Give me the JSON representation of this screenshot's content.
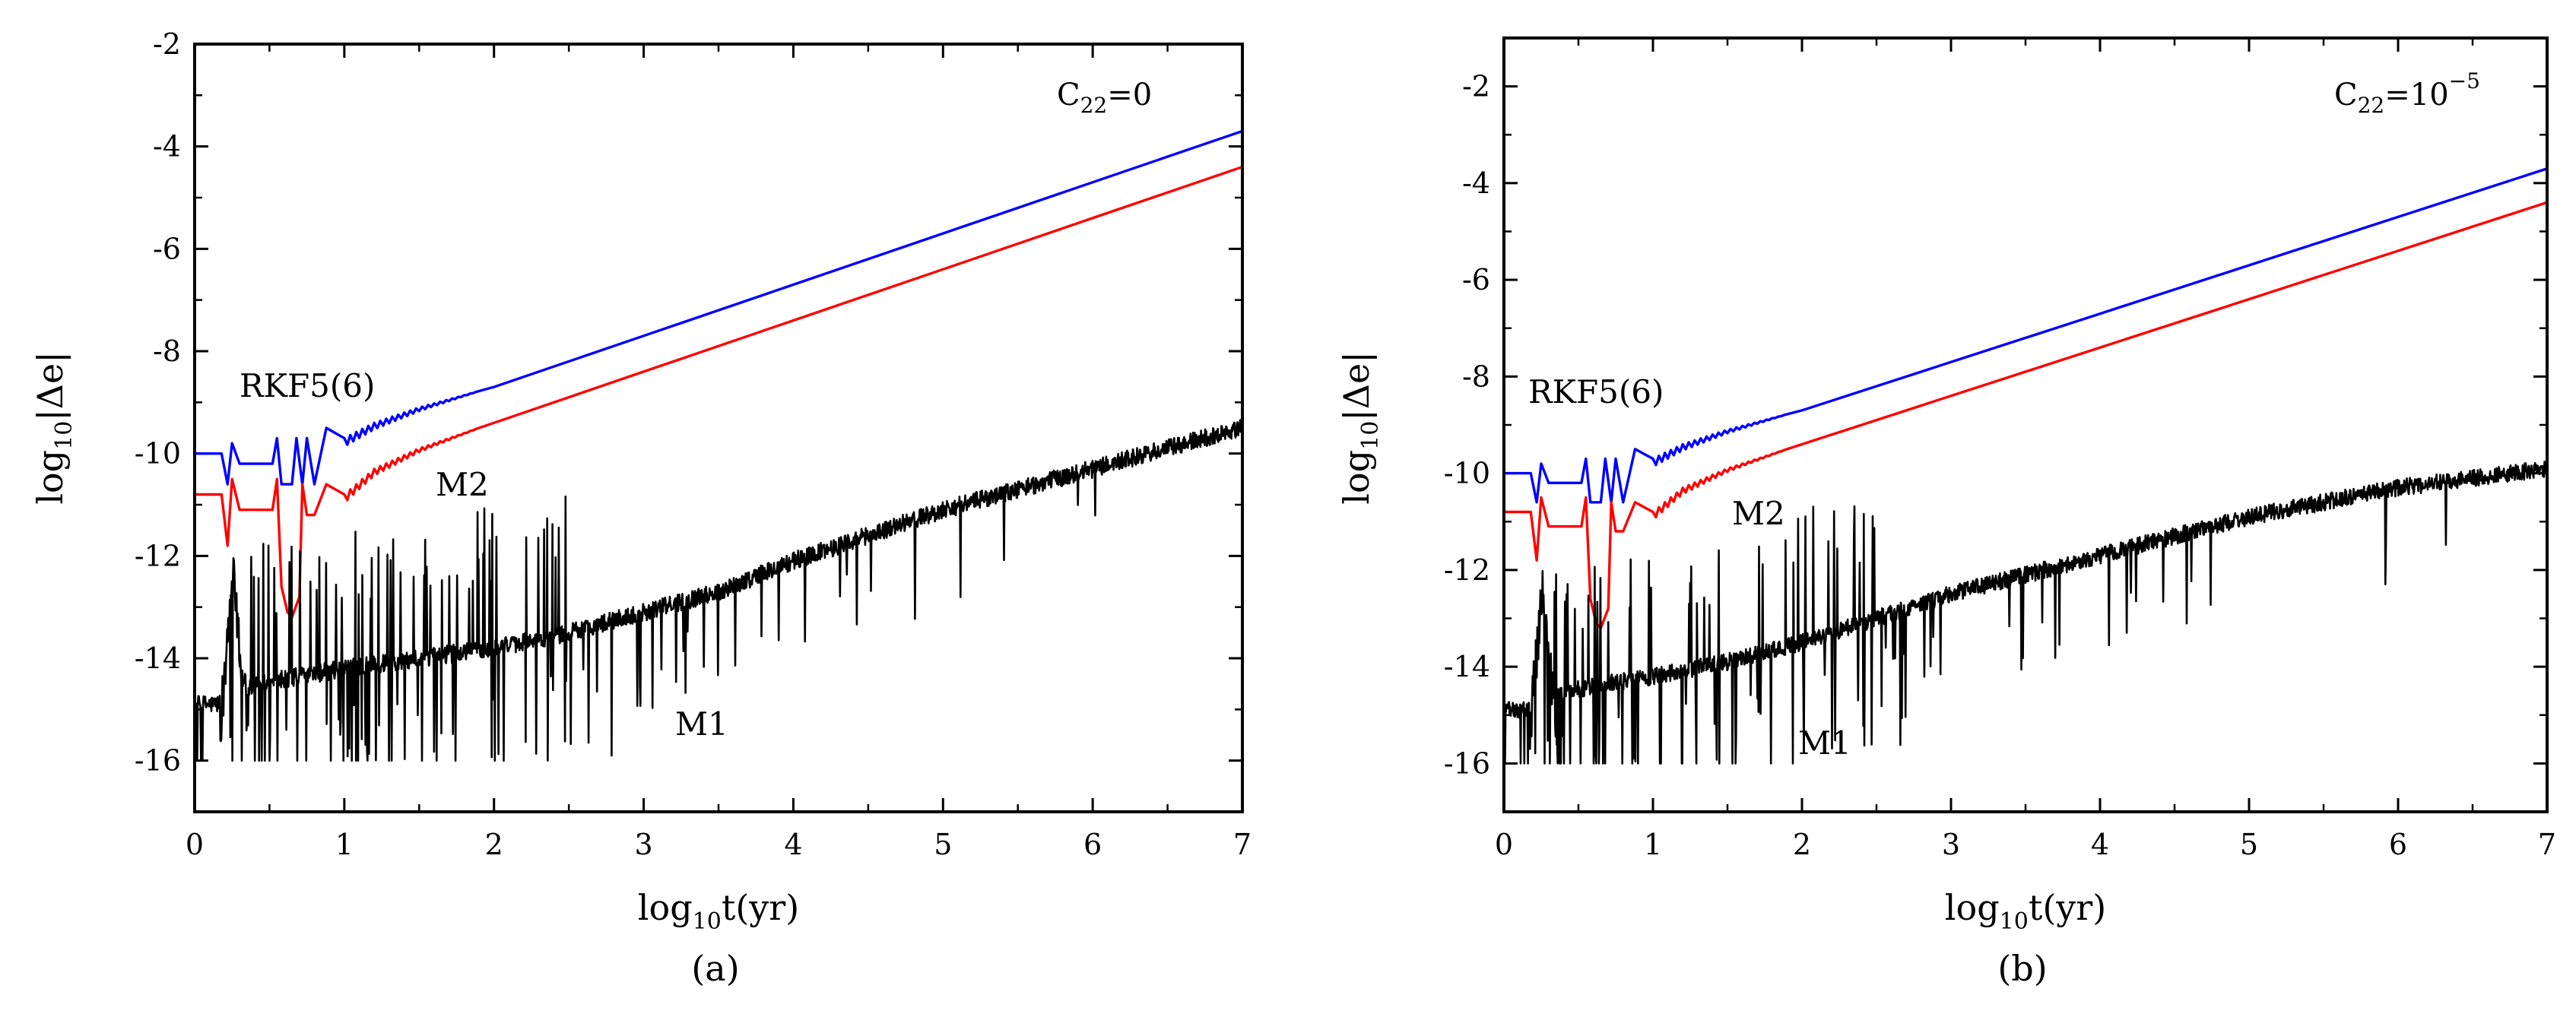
{
  "chart_data": [
    {
      "type": "line",
      "panel_label": "(a)",
      "annotation": {
        "symbol": "C",
        "sub": "22",
        "text": "=0",
        "sup": ""
      },
      "xlabel": {
        "prefix": "log",
        "sub": "10",
        "text": "t(yr)"
      },
      "ylabel": {
        "prefix": "log",
        "sub": "10",
        "text": "|Δe|"
      },
      "xlim": [
        0,
        7
      ],
      "ylim": [
        -17,
        -2
      ],
      "xticks": [
        "0",
        "1",
        "2",
        "3",
        "4",
        "5",
        "6",
        "7"
      ],
      "yticks": [
        "-16",
        "-14",
        "-12",
        "-10",
        "-8",
        "-6",
        "-4",
        "-2"
      ],
      "labels": {
        "rkf": "RKF5(6)",
        "m2": "M2",
        "m1": "M1"
      },
      "series": [
        {
          "name": "RKF5(6)",
          "color": "#0000ff",
          "x": [
            0,
            0.18,
            0.22,
            0.25,
            0.3,
            0.52,
            0.55,
            0.58,
            0.65,
            0.68,
            0.72,
            0.75,
            0.8,
            0.88,
            1.0,
            1.2,
            1.5,
            2,
            3,
            4,
            5,
            6,
            7
          ],
          "y": [
            -10,
            -10,
            -10.6,
            -9.8,
            -10.2,
            -10.2,
            -9.7,
            -10.6,
            -10.6,
            -9.7,
            -10.6,
            -9.7,
            -10.6,
            -9.5,
            -9.7,
            -9.4,
            -9.1,
            -8.7,
            -7.7,
            -6.7,
            -5.7,
            -4.7,
            -3.7
          ]
        },
        {
          "name": "M2",
          "color": "#ff0000",
          "x": [
            0,
            0.18,
            0.22,
            0.25,
            0.3,
            0.52,
            0.55,
            0.58,
            0.62,
            0.65,
            0.7,
            0.72,
            0.75,
            0.8,
            0.88,
            1.0,
            1.2,
            1.5,
            2,
            3,
            4,
            5,
            6,
            7
          ],
          "y": [
            -10.8,
            -10.8,
            -11.8,
            -10.5,
            -11.1,
            -11.1,
            -10.5,
            -12.6,
            -13.1,
            -13.2,
            -12.8,
            -10.6,
            -11.2,
            -11.2,
            -10.6,
            -10.8,
            -10.3,
            -9.9,
            -9.4,
            -8.4,
            -7.4,
            -6.4,
            -5.4,
            -4.4
          ]
        },
        {
          "name": "M1",
          "color": "#000000",
          "trend_x": [
            0,
            0.15,
            0.3,
            0.6,
            1,
            1.5,
            2,
            2.5,
            3,
            3.5,
            4,
            4.5,
            5,
            5.5,
            6,
            6.5,
            7
          ],
          "trend_y": [
            -14.9,
            -14.9,
            -14.6,
            -14.4,
            -14.2,
            -14.0,
            -13.8,
            -13.5,
            -13.1,
            -12.7,
            -12.1,
            -11.6,
            -11.1,
            -10.7,
            -10.3,
            -9.9,
            -9.5
          ]
        }
      ]
    },
    {
      "type": "line",
      "panel_label": "(b)",
      "annotation": {
        "symbol": "C",
        "sub": "22",
        "text": "=10",
        "sup": "−5"
      },
      "xlabel": {
        "prefix": "log",
        "sub": "10",
        "text": "t(yr)"
      },
      "ylabel": {
        "prefix": "log",
        "sub": "10",
        "text": "|Δe|"
      },
      "xlim": [
        0,
        7
      ],
      "ylim": [
        -17,
        -1
      ],
      "xticks": [
        "0",
        "1",
        "2",
        "3",
        "4",
        "5",
        "6",
        "7"
      ],
      "yticks": [
        "-16",
        "-14",
        "-12",
        "-10",
        "-8",
        "-6",
        "-4",
        "-2"
      ],
      "labels": {
        "rkf": "RKF5(6)",
        "m2": "M2",
        "m1": "M1"
      },
      "series": [
        {
          "name": "RKF5(6)",
          "color": "#0000ff",
          "x": [
            0,
            0.18,
            0.22,
            0.25,
            0.3,
            0.52,
            0.55,
            0.58,
            0.65,
            0.68,
            0.72,
            0.75,
            0.8,
            0.88,
            1.0,
            1.2,
            1.5,
            2,
            3,
            4,
            5,
            6,
            7
          ],
          "y": [
            -10,
            -10,
            -10.6,
            -9.8,
            -10.2,
            -10.2,
            -9.7,
            -10.6,
            -10.6,
            -9.7,
            -10.6,
            -9.7,
            -10.6,
            -9.5,
            -9.7,
            -9.4,
            -9.1,
            -8.7,
            -7.7,
            -6.7,
            -5.7,
            -4.7,
            -3.7
          ]
        },
        {
          "name": "M2",
          "color": "#ff0000",
          "x": [
            0,
            0.18,
            0.22,
            0.25,
            0.3,
            0.52,
            0.55,
            0.58,
            0.62,
            0.65,
            0.7,
            0.72,
            0.75,
            0.8,
            0.88,
            1.0,
            1.2,
            1.5,
            2,
            3,
            4,
            5,
            6,
            7
          ],
          "y": [
            -10.8,
            -10.8,
            -11.8,
            -10.5,
            -11.1,
            -11.1,
            -10.5,
            -12.6,
            -13.1,
            -13.2,
            -12.8,
            -10.6,
            -11.2,
            -11.2,
            -10.6,
            -10.8,
            -10.3,
            -9.9,
            -9.4,
            -8.4,
            -7.4,
            -6.4,
            -5.4,
            -4.4
          ]
        },
        {
          "name": "M1",
          "color": "#000000",
          "trend_x": [
            0,
            0.15,
            0.3,
            0.6,
            1,
            1.5,
            2,
            2.5,
            3,
            3.5,
            4,
            4.5,
            5,
            5.5,
            6,
            6.5,
            7
          ],
          "trend_y": [
            -14.9,
            -14.9,
            -14.6,
            -14.4,
            -14.2,
            -13.9,
            -13.5,
            -13.0,
            -12.5,
            -12.1,
            -11.7,
            -11.3,
            -10.9,
            -10.6,
            -10.3,
            -10.1,
            -9.9
          ]
        }
      ]
    }
  ]
}
